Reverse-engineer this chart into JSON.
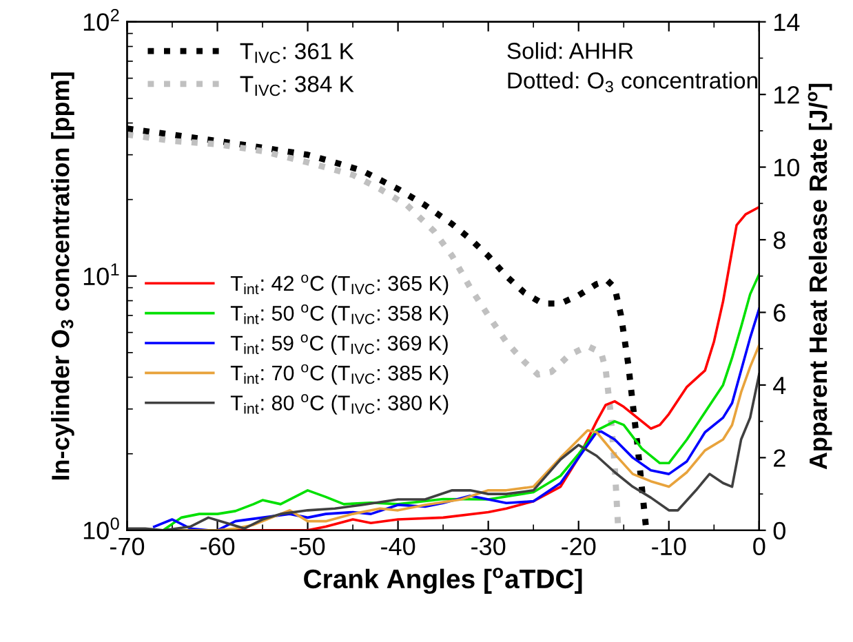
{
  "chart_data": {
    "type": "line",
    "xlabel": "Crank Angles [$^{o}$aTDC]",
    "ylabel": "In-cylinder O$_{3}$ concentration [ppm]",
    "y2label": "Apparent Heat Release Rate [J/$^{o}$]",
    "annotations": [
      "Solid: AHHR\nDotted: O$_{3}$ concentration"
    ],
    "xlim": [
      -70,
      0
    ],
    "xticks": [
      -70,
      -60,
      -50,
      -40,
      -30,
      -20,
      -10,
      0
    ],
    "log": true,
    "ylim": [
      1,
      100
    ],
    "yticks": [
      {
        "value": 1,
        "label": "10$^{0}$"
      },
      {
        "value": 10,
        "label": "10$^{1}$"
      },
      {
        "value": 100,
        "label": "10$^{2}$"
      }
    ],
    "y2lim": [
      0,
      14
    ],
    "y2ticks": [
      0,
      2,
      4,
      6,
      8,
      10,
      12,
      14
    ],
    "legend": "top left",
    "grid": false,
    "series": [
      {
        "name": "T$_{IVC}$: 361 K",
        "color": "#000000",
        "line_style": "dotted",
        "axis": "y",
        "x": [
          -70,
          -65,
          -60,
          -55,
          -50,
          -47,
          -44,
          -40,
          -37,
          -34,
          -32,
          -30,
          -28,
          -26,
          -24,
          -22,
          -20,
          -18,
          -16.8,
          -16,
          -15.3,
          -14.5,
          -13.5,
          -12.5
        ],
        "values": [
          38,
          36,
          34,
          32,
          30,
          28,
          26,
          22,
          19,
          16,
          14,
          12,
          10,
          8.6,
          7.8,
          7.8,
          8.4,
          9.3,
          9.6,
          9,
          7,
          4.5,
          2.2,
          1.0
        ]
      },
      {
        "name": "T$_{IVC}$: 384 K",
        "color": "#c0c0c0",
        "line_style": "dotted",
        "axis": "y",
        "x": [
          -70,
          -65,
          -60,
          -55,
          -50,
          -45,
          -42,
          -39,
          -36,
          -34,
          -32,
          -30,
          -28,
          -26,
          -24.5,
          -23,
          -21,
          -19,
          -17.5,
          -17,
          -16.5,
          -16,
          -15.6
        ],
        "values": [
          36,
          34,
          33,
          31,
          28,
          25,
          22,
          19,
          15,
          12,
          9,
          7,
          5.5,
          4.6,
          4.1,
          4.2,
          4.9,
          5.3,
          5,
          4.3,
          3,
          1.8,
          1.0
        ]
      },
      {
        "name": "T$_{int}$: 42 $^{o}$C (T$_{IVC}$: 365 K)",
        "color": "#ff0000",
        "line_style": "solid",
        "axis": "y2",
        "x": [
          -70,
          -60,
          -50,
          -48,
          -45,
          -43,
          -40,
          -35,
          -30,
          -28,
          -25,
          -22,
          -20,
          -18,
          -17,
          -16,
          -15,
          -13,
          -12,
          -11,
          -10,
          -8,
          -6,
          -5,
          -4,
          -2.5,
          -1.5,
          0
        ],
        "values": [
          0,
          0,
          0,
          0.1,
          0.3,
          0.2,
          0.3,
          0.35,
          0.5,
          0.6,
          0.8,
          1.2,
          2.0,
          3.0,
          3.45,
          3.55,
          3.4,
          3.0,
          2.8,
          2.9,
          3.2,
          3.95,
          4.4,
          5.2,
          6.3,
          8.4,
          8.7,
          8.9
        ]
      },
      {
        "name": "T$_{int}$: 50 $^{o}$C (T$_{IVC}$: 358 K)",
        "color": "#00e000",
        "line_style": "solid",
        "axis": "y2",
        "x": [
          -66,
          -64,
          -62,
          -60,
          -58,
          -56,
          -55,
          -53,
          -50,
          -48,
          -46,
          -43,
          -40,
          -35,
          -30,
          -25,
          -22,
          -20,
          -18,
          -16,
          -15,
          -13,
          -11,
          -10,
          -8,
          -6,
          -4,
          -3,
          -2,
          -1,
          0
        ],
        "values": [
          0,
          0.35,
          0.45,
          0.45,
          0.53,
          0.72,
          0.83,
          0.72,
          1.1,
          0.92,
          0.72,
          0.76,
          0.72,
          0.86,
          0.85,
          1.05,
          1.5,
          2.1,
          2.75,
          3.0,
          2.9,
          2.25,
          1.85,
          1.85,
          2.5,
          3.25,
          4.0,
          4.75,
          5.6,
          6.5,
          7.05
        ]
      },
      {
        "name": "T$_{int}$: 59 $^{o}$C (T$_{IVC}$: 369 K)",
        "color": "#0000ff",
        "line_style": "solid",
        "axis": "y2",
        "x": [
          -67,
          -65,
          -63,
          -61,
          -60,
          -58,
          -55,
          -52,
          -50,
          -48,
          -45,
          -43,
          -40,
          -37,
          -35,
          -32,
          -30,
          -28,
          -25,
          -22,
          -20,
          -18,
          -17.5,
          -16,
          -14,
          -12,
          -10,
          -8,
          -6,
          -4,
          -3,
          -2,
          -1,
          0
        ],
        "values": [
          0.1,
          0.3,
          0.05,
          0,
          0,
          0.25,
          0.35,
          0.45,
          0.35,
          0.45,
          0.5,
          0.45,
          0.7,
          0.65,
          0.75,
          0.95,
          0.85,
          0.75,
          0.8,
          1.3,
          2.0,
          2.7,
          2.72,
          2.5,
          2.0,
          1.65,
          1.55,
          1.9,
          2.7,
          3.1,
          3.5,
          4.4,
          5.3,
          6.1
        ]
      },
      {
        "name": "T$_{int}$: 70 $^{o}$C (T$_{IVC}$: 385 K)",
        "color": "#e8a33c",
        "line_style": "solid",
        "axis": "y2",
        "x": [
          -66,
          -60,
          -58,
          -56,
          -52,
          -50,
          -48,
          -45,
          -42,
          -40,
          -37,
          -33,
          -30,
          -28,
          -25,
          -22,
          -20,
          -19,
          -18,
          -16,
          -14,
          -12,
          -10,
          -8,
          -6,
          -4,
          -3,
          -2,
          -1,
          0
        ],
        "values": [
          0,
          0,
          0.05,
          0.15,
          0.55,
          0.25,
          0.25,
          0.45,
          0.6,
          0.55,
          0.7,
          0.85,
          1.1,
          1.1,
          1.2,
          2.0,
          2.5,
          2.75,
          2.7,
          2.1,
          1.55,
          1.35,
          1.2,
          1.6,
          2.2,
          2.5,
          2.9,
          3.8,
          4.5,
          5.1
        ]
      },
      {
        "name": "T$_{int}$: 80 $^{o}$C (T$_{IVC}$: 380 K)",
        "color": "#404040",
        "line_style": "solid",
        "axis": "y2",
        "x": [
          -70,
          -68,
          -66,
          -63,
          -61,
          -59,
          -57,
          -55,
          -53,
          -50,
          -47,
          -44,
          -40,
          -37,
          -34,
          -32,
          -30,
          -28,
          -25,
          -22,
          -20,
          -18,
          -16,
          -14,
          -12,
          -10,
          -9,
          -7,
          -5.5,
          -4,
          -3,
          -2,
          -1,
          0
        ],
        "values": [
          0.05,
          0.05,
          0,
          0.1,
          0.35,
          0.2,
          0.05,
          0.3,
          0.45,
          0.55,
          0.6,
          0.7,
          0.85,
          0.85,
          1.1,
          1.1,
          1.0,
          1.0,
          1.1,
          1.95,
          2.35,
          2.05,
          1.6,
          1.2,
          0.9,
          0.55,
          0.55,
          1.1,
          1.55,
          1.3,
          1.2,
          2.5,
          3.1,
          4.3
        ]
      }
    ]
  }
}
